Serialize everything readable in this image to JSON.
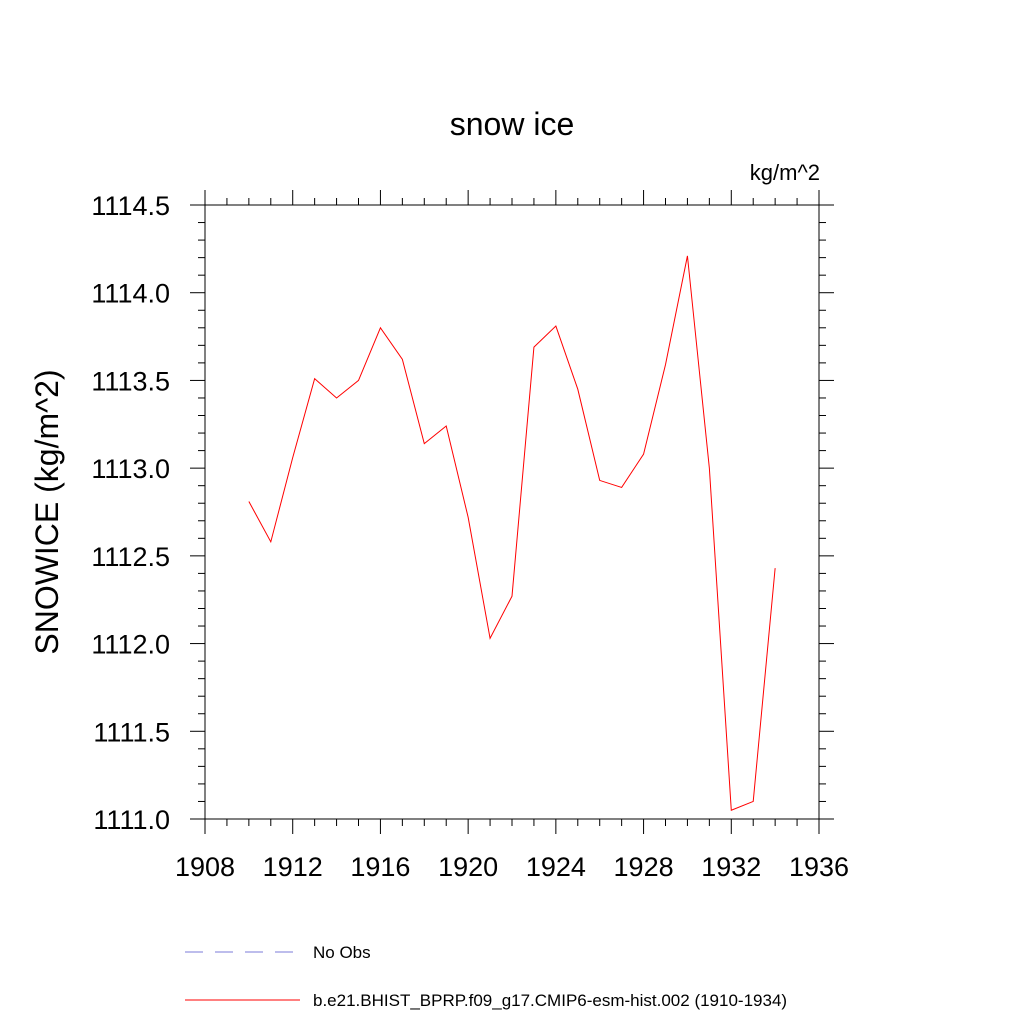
{
  "chart_data": {
    "type": "line",
    "title": "snow ice",
    "units": "kg/m^2",
    "ylabel": "SNOWICE  (kg/m^2)",
    "xlabel": "",
    "xlim": [
      1908,
      1936
    ],
    "ylim": [
      1111.0,
      1114.5
    ],
    "x_ticks": [
      "1908",
      "1912",
      "1916",
      "1920",
      "1924",
      "1928",
      "1932",
      "1936"
    ],
    "y_ticks": [
      "1111.0",
      "1111.5",
      "1112.0",
      "1112.5",
      "1113.0",
      "1113.5",
      "1114.0",
      "1114.5"
    ],
    "grid": false,
    "legend_position": "bottom",
    "series": [
      {
        "name": "No Obs",
        "color": "#7b7bd8",
        "dash": "dashed",
        "x": [],
        "values": []
      },
      {
        "name": "b.e21.BHIST_BPRP.f09_g17.CMIP6-esm-hist.002 (1910-1934)",
        "color": "#ff0000",
        "dash": "solid",
        "x": [
          1910,
          1911,
          1912,
          1913,
          1914,
          1915,
          1916,
          1917,
          1918,
          1919,
          1920,
          1921,
          1922,
          1923,
          1924,
          1925,
          1926,
          1927,
          1928,
          1929,
          1930,
          1931,
          1932,
          1933,
          1934
        ],
        "values": [
          1112.81,
          1112.58,
          1113.06,
          1113.51,
          1113.4,
          1113.5,
          1113.8,
          1113.62,
          1113.14,
          1113.24,
          1112.72,
          1112.03,
          1112.27,
          1113.69,
          1113.81,
          1113.45,
          1112.93,
          1112.89,
          1113.08,
          1113.59,
          1114.21,
          1113.0,
          1111.05,
          1111.1,
          1112.43
        ]
      }
    ]
  }
}
